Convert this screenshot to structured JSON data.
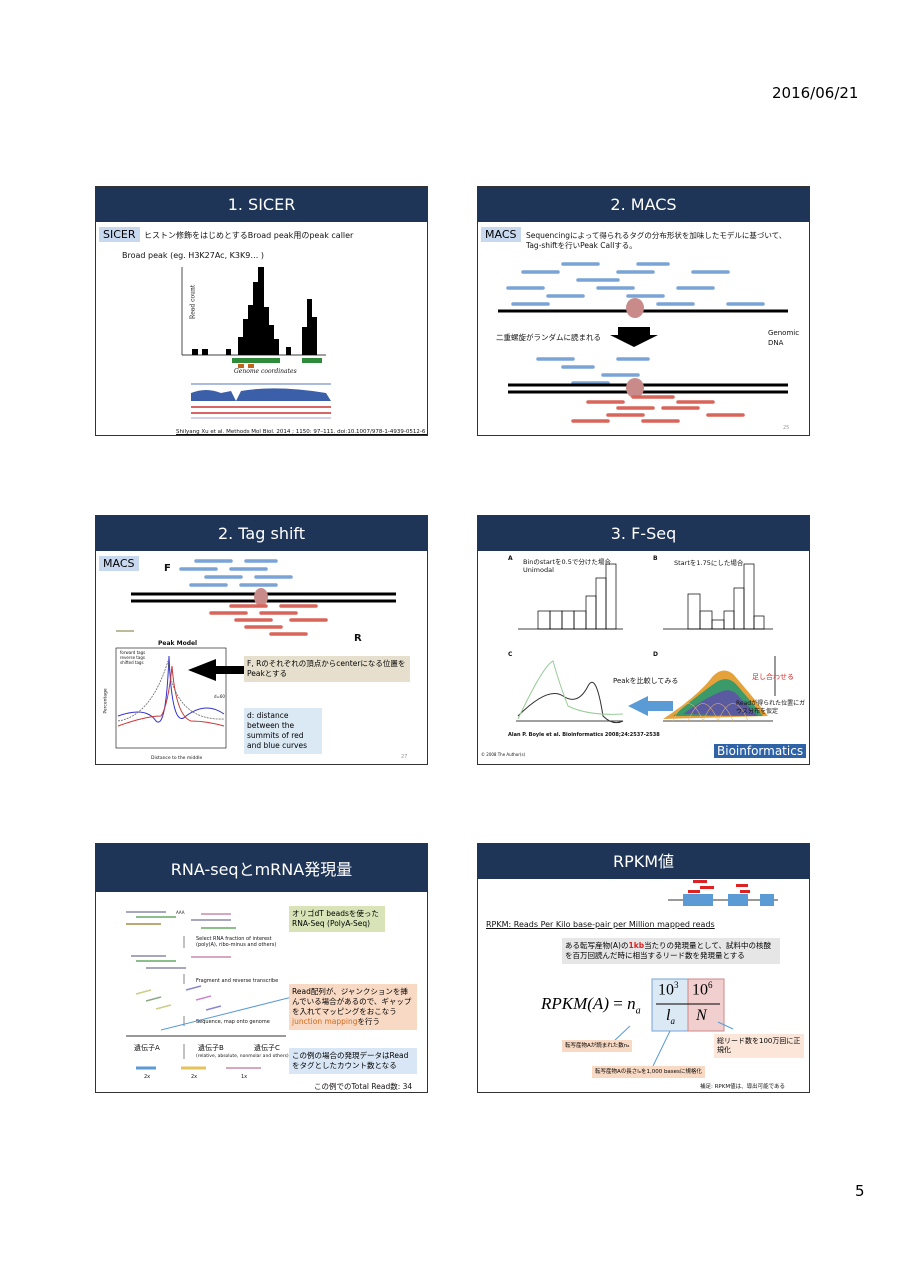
{
  "header": {
    "date": "2016/06/21"
  },
  "footer": {
    "page": "5"
  },
  "slides": [
    {
      "title": "1. SICER",
      "tag": "SICER",
      "description": "ヒストン修飾をはじめとするBroad peak用のpeak caller",
      "subtitle": "Broad peak (eg. H3K27Ac, K3K9… )",
      "y_label": "Read count",
      "x_label": "Genome coordinates",
      "citation": "Shilyang Xu et al. Methods Mol Biol. 2014 ; 1150: 97–111. doi:10.1007/978-1-4939-0512-6_5"
    },
    {
      "title": "2. MACS",
      "tag": "MACS",
      "description": "Sequencingによって得られるタグの分布形状を加味したモデルに基づいて、Tag-shiftを行いPeak Callする。",
      "left_label": "二重螺旋がランダムに読まれる",
      "right_label": "Genomic DNA",
      "slide_number": "25"
    },
    {
      "title": "2. Tag shift",
      "tag": "MACS",
      "label_f": "F",
      "label_r": "R",
      "plot_title": "Peak Model",
      "legend": [
        "forward tags",
        "reverse tags",
        "shifted tags"
      ],
      "x_label": "Distance to the middle",
      "y_label": "Percentage",
      "d_label": "d=60",
      "callout_1": "F, Rのそれぞれの頂点からcenterになる位置をPeakとする",
      "callout_2": "d: distance between the summits of red and blue curves",
      "slide_number": "27"
    },
    {
      "title": "3. F-Seq",
      "panels": [
        "A",
        "B",
        "C",
        "D"
      ],
      "note_a": "Binのstartを0.5で分けた場合 Unimodal",
      "note_b": "Startを1.75にした場合",
      "compare": "Peakを比較してみる",
      "sum": "足し合わせる",
      "gauss": "Readが得られた位置にガウス分布を仮定",
      "citation": "Alan P. Boyle et al. Bioinformatics 2008;24:2537-2538",
      "copyright": "© 2008 The Author(s)",
      "journal": "Bioinformatics"
    },
    {
      "title": "RNA-seqとmRNA発現量",
      "callout_1": "オリゴdT beadsを使ったRNA-Seq (PolyA-Seq)",
      "step_1": "Select RNA fraction of interest (poly(A), ribo-minus and others)",
      "step_2": "Fragment and reverse transcribe",
      "step_3": "Sequence, map onto genome",
      "step_4": "(relative, absolute, nonmolar and others)",
      "callout_2": "Read配列が、ジャンクションを挿んでいる場合があるので、ギャップを入れてマッピングをおこなう",
      "callout_2_em": "junction mapping",
      "callout_2_end": "を行う",
      "genes": [
        "遺伝子A",
        "遺伝子B",
        "遺伝子C"
      ],
      "counts": [
        "2x",
        "2x",
        "1x"
      ],
      "poly_a": "AAA",
      "callout_3": "この例の場合の発現データはReadをタグとしたカウント数となる",
      "total": "この例でのTotal Read数: 34"
    },
    {
      "title": "RPKM値",
      "definition": "RPKM: Reads Per Kilo base-pair per Million mapped reads",
      "explanation_1": "ある転写産物(A)の",
      "explanation_em": "1kb",
      "explanation_2": "当たりの発現量として、試料中の核酸を百万回読んだ時に相当するリード数を発現量とする",
      "formula": {
        "lhs": "RPKM(A)",
        "eq": "=",
        "n": "n",
        "n_sub": "a",
        "k": "10",
        "k_exp": "3",
        "l": "l",
        "l_sub": "a",
        "m": "10",
        "m_exp": "6",
        "N": "N"
      },
      "note_n": "転写産物Aが読まれた数nₐ",
      "note_l": "転写産物Aの長さlₐを1,000 basesに規格化",
      "note_N": "総リード数を100万回に正規化",
      "footnote": "補足: RPKM値は、導出可能である"
    }
  ]
}
